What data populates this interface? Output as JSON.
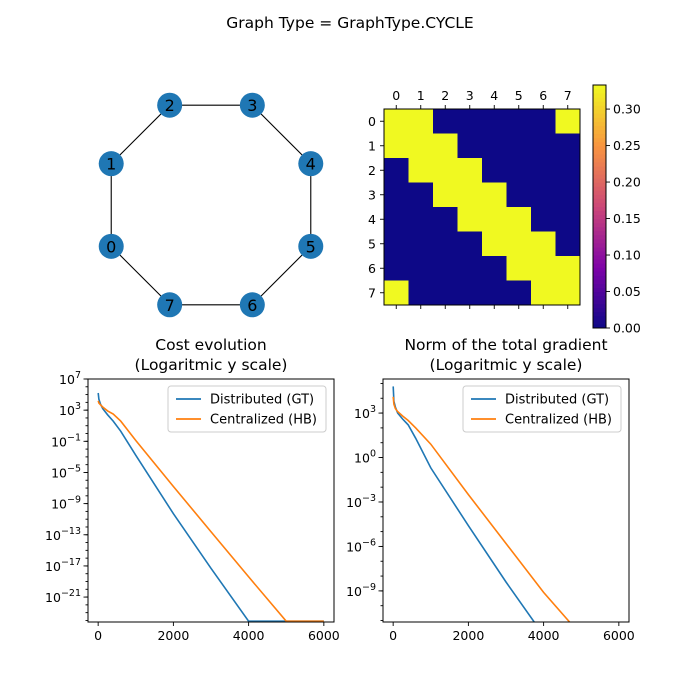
{
  "page_title": "Graph Type = GraphType.CYCLE",
  "chart_data": [
    {
      "type": "network",
      "nodes": [
        "0",
        "1",
        "2",
        "3",
        "4",
        "5",
        "6",
        "7"
      ],
      "edges": [
        [
          0,
          1
        ],
        [
          1,
          2
        ],
        [
          2,
          3
        ],
        [
          3,
          4
        ],
        [
          4,
          5
        ],
        [
          5,
          6
        ],
        [
          6,
          7
        ],
        [
          7,
          0
        ]
      ],
      "node_color": "#1f77b4"
    },
    {
      "type": "heatmap",
      "title": "",
      "colormap": "plasma",
      "x_tick_labels": [
        "0",
        "1",
        "2",
        "3",
        "4",
        "5",
        "6",
        "7"
      ],
      "y_tick_labels": [
        "0",
        "1",
        "2",
        "3",
        "4",
        "5",
        "6",
        "7"
      ],
      "matrix": [
        [
          0.333,
          0.333,
          0,
          0,
          0,
          0,
          0,
          0.333
        ],
        [
          0.333,
          0.333,
          0.333,
          0,
          0,
          0,
          0,
          0
        ],
        [
          0,
          0.333,
          0.333,
          0.333,
          0,
          0,
          0,
          0
        ],
        [
          0,
          0,
          0.333,
          0.333,
          0.333,
          0,
          0,
          0
        ],
        [
          0,
          0,
          0,
          0.333,
          0.333,
          0.333,
          0,
          0
        ],
        [
          0,
          0,
          0,
          0,
          0.333,
          0.333,
          0.333,
          0
        ],
        [
          0,
          0,
          0,
          0,
          0,
          0.333,
          0.333,
          0.333
        ],
        [
          0.333,
          0,
          0,
          0,
          0,
          0,
          0.333,
          0.333
        ]
      ],
      "vmin": 0,
      "vmax": 0.333,
      "colorbar_ticks": [
        "0.00",
        "0.05",
        "0.10",
        "0.15",
        "0.20",
        "0.25",
        "0.30"
      ],
      "colorbar_tick_values": [
        0,
        0.05,
        0.1,
        0.15,
        0.2,
        0.25,
        0.3
      ]
    },
    {
      "type": "line",
      "title_line1": "Cost evolution",
      "title_line2": "(Logaritmic y scale)",
      "yscale": "log",
      "xlim": [
        -270,
        6270
      ],
      "ylog_lim": [
        -24.2,
        7
      ],
      "x_ticks": [
        0,
        2000,
        4000,
        6000
      ],
      "x_tick_labels": [
        "0",
        "2000",
        "4000",
        "6000"
      ],
      "y_tick_exponents": [
        7,
        3,
        -1,
        -5,
        -9,
        -13,
        -17,
        -21
      ],
      "y_tick_labels": [
        "10",
        "10",
        "10",
        "10",
        "10",
        "10",
        "10",
        "10"
      ],
      "y_tick_superscripts": [
        "7",
        "3",
        "−1",
        "−5",
        "−9",
        "−13",
        "−17",
        "−21"
      ],
      "legend_position": "upper right",
      "series": [
        {
          "name": "Distributed (GT)",
          "color": "#1f77b4",
          "x": [
            0,
            20,
            60,
            120,
            250,
            400,
            600,
            1000,
            2000,
            3000,
            4000,
            4100,
            6000
          ],
          "log10_y": [
            5.2,
            4.4,
            3.8,
            3.2,
            2.4,
            1.6,
            0.3,
            -2.8,
            -10.3,
            -17.3,
            -24.1,
            -24.1,
            -24.1
          ]
        },
        {
          "name": "Centralized (HB)",
          "color": "#ff7f0e",
          "x": [
            0,
            20,
            60,
            120,
            250,
            400,
            600,
            1000,
            2000,
            3000,
            4000,
            5000,
            5100,
            6000
          ],
          "log10_y": [
            4.2,
            3.9,
            3.7,
            3.4,
            2.9,
            2.5,
            1.6,
            -0.9,
            -6.8,
            -12.6,
            -18.4,
            -24.1,
            -24.1,
            -24.1
          ]
        }
      ]
    },
    {
      "type": "line",
      "title_line1": "Norm of the total gradient",
      "title_line2": "(Logaritmic y scale)",
      "yscale": "log",
      "xlim": [
        -270,
        6270
      ],
      "ylog_lim": [
        -11.1,
        5.3
      ],
      "x_ticks": [
        0,
        2000,
        4000,
        6000
      ],
      "x_tick_labels": [
        "0",
        "2000",
        "4000",
        "6000"
      ],
      "y_tick_exponents": [
        3,
        0,
        -3,
        -6,
        -9
      ],
      "y_tick_labels": [
        "10",
        "10",
        "10",
        "10",
        "10"
      ],
      "y_tick_superscripts": [
        "3",
        "0",
        "−3",
        "−6",
        "−9"
      ],
      "legend_position": "upper right",
      "series": [
        {
          "name": "Distributed (GT)",
          "color": "#1f77b4",
          "x": [
            0,
            20,
            60,
            120,
            250,
            400,
            600,
            1000,
            2000,
            3000,
            4000,
            4100,
            6000
          ],
          "log10_y": [
            4.8,
            3.8,
            3.4,
            3.0,
            2.6,
            2.2,
            1.3,
            -0.7,
            -4.6,
            -8.4,
            -12.0,
            -12.0,
            -12.0
          ]
        },
        {
          "name": "Centralized (HB)",
          "color": "#ff7f0e",
          "x": [
            0,
            20,
            60,
            120,
            250,
            400,
            600,
            1000,
            2000,
            3000,
            4000,
            5000,
            5100,
            6000
          ],
          "log10_y": [
            4.1,
            3.6,
            3.3,
            3.1,
            2.8,
            2.5,
            2.0,
            0.9,
            -2.5,
            -5.8,
            -9.1,
            -12.0,
            -12.0,
            -12.0
          ]
        }
      ]
    }
  ]
}
